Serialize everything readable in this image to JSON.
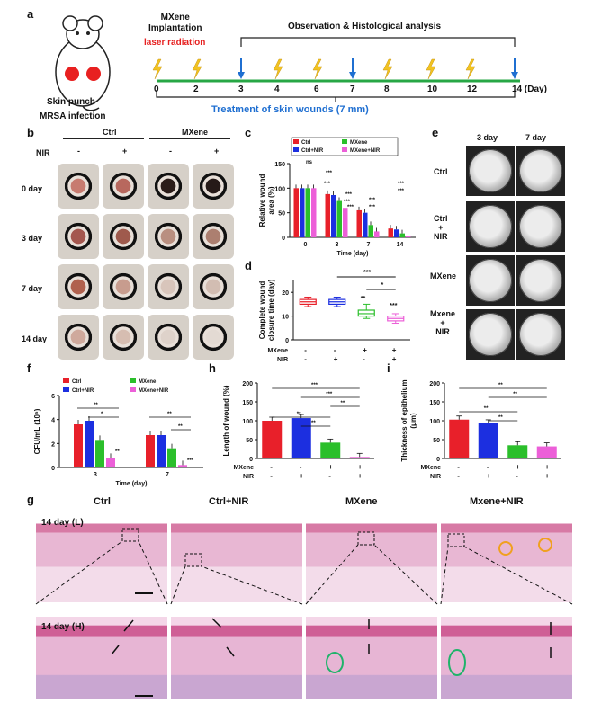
{
  "panels": {
    "a": "a",
    "b": "b",
    "c": "c",
    "d": "d",
    "e": "e",
    "f": "f",
    "g": "g",
    "h": "h",
    "i": "i"
  },
  "panel_a": {
    "mouse_labels": [
      "Skin punch",
      "MRSA infection"
    ],
    "implant_label": "MXene\nImplantation",
    "laser_label": "laser radiation",
    "observe_label": "Observation & Histological analysis",
    "treatment_label": "Treatment of skin wounds (7 mm)",
    "day_ticks": [
      "0",
      "2",
      "3",
      "4",
      "6",
      "7",
      "8",
      "10",
      "12",
      "14 (Day)"
    ],
    "laser_color": "#e62020",
    "treatment_color": "#1f6fd1"
  },
  "panel_b": {
    "group_headers": [
      "Ctrl",
      "MXene"
    ],
    "nir_label": "NIR",
    "nir_signs": [
      "-",
      "+",
      "-",
      "+"
    ],
    "row_labels": [
      "0 day",
      "3 day",
      "7 day",
      "14 day"
    ]
  },
  "panel_e": {
    "col_headers": [
      "3 day",
      "7 day"
    ],
    "row_labels": [
      "Ctrl",
      "Ctrl\n+\nNIR",
      "MXene",
      "Mxene\n+\nNIR"
    ]
  },
  "panel_g": {
    "col_headers": [
      "Ctrl",
      "Ctrl+NIR",
      "MXene",
      "Mxene+NIR"
    ],
    "row_labels": [
      "14 day (L)",
      "14 day (H)"
    ]
  },
  "chart_data": [
    {
      "panel": "c",
      "type": "bar",
      "ylabel": "Relative wound\narea (%)",
      "xlabel": "Time (day)",
      "categories": [
        "0",
        "3",
        "7",
        "14"
      ],
      "ylim": [
        0,
        150
      ],
      "yticks": [
        0,
        50,
        100,
        150
      ],
      "legend": [
        "Ctrl",
        "Ctrl+NIR",
        "MXene",
        "MXene+NIR"
      ],
      "series": [
        {
          "name": "Ctrl",
          "color": "#e8202a",
          "values": [
            100,
            88,
            55,
            18
          ]
        },
        {
          "name": "Ctrl+NIR",
          "color": "#1c2fe0",
          "values": [
            100,
            86,
            50,
            16
          ]
        },
        {
          "name": "MXene",
          "color": "#2bbf2b",
          "values": [
            100,
            74,
            25,
            8
          ]
        },
        {
          "name": "MXene+NIR",
          "color": "#ec5fd8",
          "values": [
            100,
            60,
            12,
            3
          ]
        }
      ],
      "annotations": [
        "ns",
        "***",
        "***",
        "***",
        "***",
        "***",
        "***",
        "***",
        "***",
        "***"
      ]
    },
    {
      "panel": "d",
      "type": "box",
      "ylabel": "Complete wound\nclosure time (day)",
      "ylim": [
        0,
        25
      ],
      "yticks": [
        0,
        10,
        20
      ],
      "row_labels": [
        "MXene",
        "NIR"
      ],
      "signs": [
        [
          "-",
          "-",
          "+",
          "+"
        ],
        [
          "-",
          "+",
          "-",
          "+"
        ]
      ],
      "boxes": [
        {
          "color": "#e8202a",
          "min": 14,
          "q1": 15,
          "median": 16,
          "q3": 17,
          "max": 18
        },
        {
          "color": "#1c2fe0",
          "min": 14,
          "q1": 15,
          "median": 16,
          "q3": 17,
          "max": 18
        },
        {
          "color": "#2bbf2b",
          "min": 9,
          "q1": 10,
          "median": 11,
          "q3": 12.5,
          "max": 15
        },
        {
          "color": "#ec5fd8",
          "min": 7,
          "q1": 8,
          "median": 9,
          "q3": 10,
          "max": 11
        }
      ],
      "annotations": [
        "***",
        "*",
        "**",
        "***"
      ]
    },
    {
      "panel": "f",
      "type": "bar",
      "ylabel": "CFU/mL (10⁵)",
      "xlabel": "Time (day)",
      "categories": [
        "3",
        "7"
      ],
      "ylim": [
        0,
        6
      ],
      "yticks": [
        0,
        2,
        4,
        6
      ],
      "legend": [
        "Ctrl",
        "MXene",
        "Ctrl+NIR",
        "MXene+NIR"
      ],
      "series": [
        {
          "name": "Ctrl",
          "color": "#e8202a",
          "values": [
            3.6,
            2.7
          ]
        },
        {
          "name": "Ctrl+NIR",
          "color": "#1c2fe0",
          "values": [
            3.9,
            2.7
          ]
        },
        {
          "name": "MXene",
          "color": "#2bbf2b",
          "values": [
            2.3,
            1.6
          ]
        },
        {
          "name": "MXene+NIR",
          "color": "#ec5fd8",
          "values": [
            0.8,
            0.2
          ]
        }
      ],
      "annotations": [
        "**",
        "*",
        "**",
        "**",
        "**",
        "***"
      ]
    },
    {
      "panel": "h",
      "type": "bar",
      "ylabel": "Length of wound (%)",
      "ylim": [
        0,
        200
      ],
      "yticks": [
        0,
        50,
        100,
        150,
        200
      ],
      "row_labels": [
        "MXene",
        "NIR"
      ],
      "signs": [
        [
          "-",
          "-",
          "+",
          "+"
        ],
        [
          "-",
          "+",
          "-",
          "+"
        ]
      ],
      "bars": [
        {
          "color": "#e8202a",
          "value": 100
        },
        {
          "color": "#1c2fe0",
          "value": 107
        },
        {
          "color": "#2bbf2b",
          "value": 42
        },
        {
          "color": "#ec5fd8",
          "value": 4
        }
      ],
      "annotations": [
        "***",
        "***",
        "**",
        "**",
        "**"
      ]
    },
    {
      "panel": "i",
      "type": "bar",
      "ylabel": "Thickness of epithelium\n(μm)",
      "ylim": [
        0,
        200
      ],
      "yticks": [
        0,
        50,
        100,
        150,
        200
      ],
      "row_labels": [
        "MXene",
        "NIR"
      ],
      "signs": [
        [
          "-",
          "-",
          "+",
          "+"
        ],
        [
          "-",
          "+",
          "-",
          "+"
        ]
      ],
      "bars": [
        {
          "color": "#e8202a",
          "value": 103
        },
        {
          "color": "#1c2fe0",
          "value": 93
        },
        {
          "color": "#2bbf2b",
          "value": 35
        },
        {
          "color": "#ec5fd8",
          "value": 32
        }
      ],
      "annotations": [
        "**",
        "**",
        "**",
        "**"
      ]
    }
  ]
}
